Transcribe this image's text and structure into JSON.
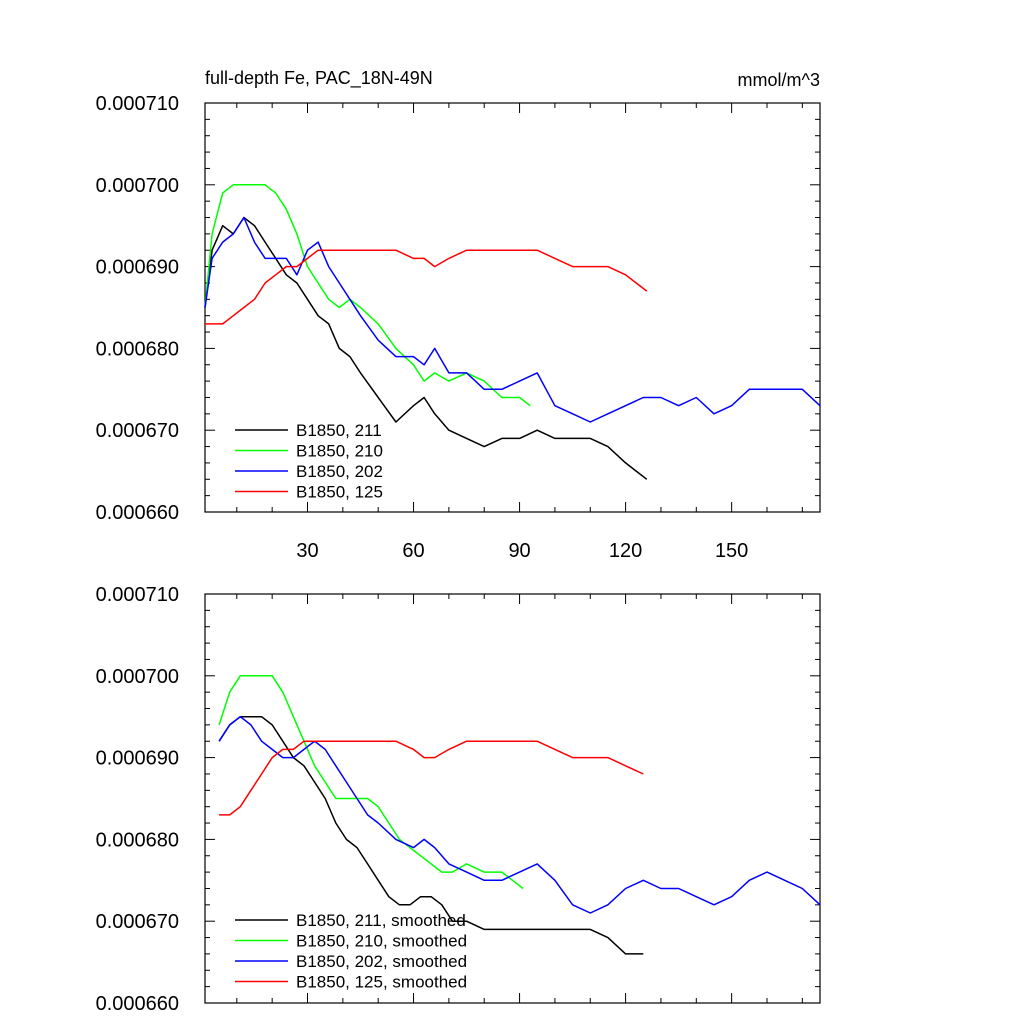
{
  "chart_data": [
    {
      "type": "line",
      "title": "full-depth Fe, PAC_18N-49N",
      "units": "mmol/m^3",
      "xlabel": "",
      "ylabel": "",
      "xlim": [
        1,
        175
      ],
      "ylim": [
        0.00066,
        0.00071
      ],
      "yticks": [
        "0.000660",
        "0.000670",
        "0.000680",
        "0.000690",
        "0.000700",
        "0.000710"
      ],
      "xticks": [
        30,
        60,
        90,
        120,
        150
      ],
      "xtick_labels": [
        "30",
        "60",
        "90",
        "120",
        "150"
      ],
      "legend_position": "bottom-left",
      "grid": false,
      "series": [
        {
          "name": "B1850, 211",
          "color": "#000000",
          "x": [
            1,
            3,
            6,
            9,
            12,
            15,
            18,
            21,
            24,
            27,
            30,
            33,
            36,
            39,
            42,
            45,
            50,
            55,
            60,
            63,
            66,
            70,
            75,
            80,
            85,
            90,
            95,
            100,
            105,
            110,
            115,
            120,
            123,
            126
          ],
          "y": [
            0.000685,
            0.000692,
            0.000695,
            0.000694,
            0.000696,
            0.000695,
            0.000693,
            0.000691,
            0.000689,
            0.000688,
            0.000686,
            0.000684,
            0.000683,
            0.00068,
            0.000679,
            0.000677,
            0.000674,
            0.000671,
            0.000673,
            0.000674,
            0.000672,
            0.00067,
            0.000669,
            0.000668,
            0.000669,
            0.000669,
            0.00067,
            0.000669,
            0.000669,
            0.000669,
            0.000668,
            0.000666,
            0.000665,
            0.000664
          ]
        },
        {
          "name": "B1850, 210",
          "color": "#00ff00",
          "x": [
            1,
            3,
            6,
            9,
            12,
            15,
            18,
            21,
            24,
            27,
            30,
            33,
            36,
            39,
            42,
            45,
            50,
            55,
            60,
            63,
            66,
            70,
            75,
            80,
            85,
            90,
            93
          ],
          "y": [
            0.000685,
            0.000694,
            0.000699,
            0.0007,
            0.0007,
            0.0007,
            0.0007,
            0.000699,
            0.000697,
            0.000694,
            0.00069,
            0.000688,
            0.000686,
            0.000685,
            0.000686,
            0.000685,
            0.000683,
            0.00068,
            0.000678,
            0.000676,
            0.000677,
            0.000676,
            0.000677,
            0.000676,
            0.000674,
            0.000674,
            0.000673
          ]
        },
        {
          "name": "B1850, 202",
          "color": "#0000ff",
          "x": [
            1,
            3,
            6,
            9,
            12,
            15,
            18,
            21,
            24,
            27,
            30,
            33,
            36,
            39,
            42,
            45,
            50,
            55,
            60,
            63,
            66,
            70,
            75,
            80,
            85,
            90,
            95,
            100,
            105,
            110,
            115,
            120,
            125,
            130,
            135,
            140,
            145,
            150,
            155,
            160,
            165,
            170,
            175
          ],
          "y": [
            0.000685,
            0.000691,
            0.000693,
            0.000694,
            0.000696,
            0.000693,
            0.000691,
            0.000691,
            0.000691,
            0.000689,
            0.000692,
            0.000693,
            0.00069,
            0.000688,
            0.000686,
            0.000684,
            0.000681,
            0.000679,
            0.000679,
            0.000678,
            0.00068,
            0.000677,
            0.000677,
            0.000675,
            0.000675,
            0.000676,
            0.000677,
            0.000673,
            0.000672,
            0.000671,
            0.000672,
            0.000673,
            0.000674,
            0.000674,
            0.000673,
            0.000674,
            0.000672,
            0.000673,
            0.000675,
            0.000675,
            0.000675,
            0.000675,
            0.000673
          ]
        },
        {
          "name": "B1850, 125",
          "color": "#ff0000",
          "x": [
            1,
            3,
            6,
            9,
            12,
            15,
            18,
            21,
            24,
            27,
            30,
            33,
            36,
            39,
            42,
            45,
            50,
            55,
            60,
            63,
            66,
            70,
            75,
            80,
            85,
            90,
            95,
            100,
            105,
            110,
            115,
            120,
            123,
            126
          ],
          "y": [
            0.000683,
            0.000683,
            0.000683,
            0.000684,
            0.000685,
            0.000686,
            0.000688,
            0.000689,
            0.00069,
            0.00069,
            0.000691,
            0.000692,
            0.000692,
            0.000692,
            0.000692,
            0.000692,
            0.000692,
            0.000692,
            0.000691,
            0.000691,
            0.00069,
            0.000691,
            0.000692,
            0.000692,
            0.000692,
            0.000692,
            0.000692,
            0.000691,
            0.00069,
            0.00069,
            0.00069,
            0.000689,
            0.000688,
            0.000687
          ]
        }
      ]
    },
    {
      "type": "line",
      "title": "",
      "xlabel": "",
      "ylabel": "",
      "xlim": [
        1,
        175
      ],
      "ylim": [
        0.00066,
        0.00071
      ],
      "yticks": [
        "0.000660",
        "0.000670",
        "0.000680",
        "0.000690",
        "0.000700",
        "0.000710"
      ],
      "xticks": [
        30,
        60,
        90,
        120,
        150
      ],
      "xtick_labels": [],
      "legend_position": "bottom-left",
      "grid": false,
      "series": [
        {
          "name": "B1850, 211, smoothed",
          "color": "#000000",
          "x": [
            5,
            8,
            11,
            14,
            17,
            20,
            23,
            26,
            29,
            32,
            35,
            38,
            41,
            44,
            47,
            50,
            53,
            56,
            59,
            62,
            65,
            68,
            71,
            75,
            80,
            85,
            90,
            95,
            100,
            105,
            110,
            115,
            120,
            125
          ],
          "y": [
            0.000692,
            0.000694,
            0.000695,
            0.000695,
            0.000695,
            0.000694,
            0.000692,
            0.00069,
            0.000689,
            0.000687,
            0.000685,
            0.000682,
            0.00068,
            0.000679,
            0.000677,
            0.000675,
            0.000673,
            0.000672,
            0.000672,
            0.000673,
            0.000673,
            0.000672,
            0.00067,
            0.00067,
            0.000669,
            0.000669,
            0.000669,
            0.000669,
            0.000669,
            0.000669,
            0.000669,
            0.000668,
            0.000666,
            0.000666
          ]
        },
        {
          "name": "B1850, 210, smoothed",
          "color": "#00ff00",
          "x": [
            5,
            8,
            11,
            14,
            17,
            20,
            23,
            26,
            29,
            32,
            35,
            38,
            41,
            44,
            47,
            50,
            53,
            56,
            59,
            62,
            65,
            68,
            71,
            75,
            80,
            85,
            88,
            91
          ],
          "y": [
            0.000694,
            0.000698,
            0.0007,
            0.0007,
            0.0007,
            0.0007,
            0.000698,
            0.000695,
            0.000692,
            0.000689,
            0.000687,
            0.000685,
            0.000685,
            0.000685,
            0.000685,
            0.000684,
            0.000682,
            0.00068,
            0.000679,
            0.000678,
            0.000677,
            0.000676,
            0.000676,
            0.000677,
            0.000676,
            0.000676,
            0.000675,
            0.000674
          ]
        },
        {
          "name": "B1850, 202, smoothed",
          "color": "#0000ff",
          "x": [
            5,
            8,
            11,
            14,
            17,
            20,
            23,
            26,
            29,
            32,
            35,
            38,
            41,
            44,
            47,
            50,
            55,
            60,
            63,
            66,
            70,
            75,
            80,
            85,
            90,
            95,
            100,
            105,
            110,
            115,
            120,
            125,
            130,
            135,
            140,
            145,
            150,
            155,
            160,
            165,
            170,
            175
          ],
          "y": [
            0.000692,
            0.000694,
            0.000695,
            0.000694,
            0.000692,
            0.000691,
            0.00069,
            0.00069,
            0.000691,
            0.000692,
            0.000691,
            0.000689,
            0.000687,
            0.000685,
            0.000683,
            0.000682,
            0.00068,
            0.000679,
            0.00068,
            0.000679,
            0.000677,
            0.000676,
            0.000675,
            0.000675,
            0.000676,
            0.000677,
            0.000675,
            0.000672,
            0.000671,
            0.000672,
            0.000674,
            0.000675,
            0.000674,
            0.000674,
            0.000673,
            0.000672,
            0.000673,
            0.000675,
            0.000676,
            0.000675,
            0.000674,
            0.000672
          ]
        },
        {
          "name": "B1850, 125, smoothed",
          "color": "#ff0000",
          "x": [
            5,
            8,
            11,
            14,
            17,
            20,
            23,
            26,
            29,
            32,
            35,
            38,
            41,
            44,
            47,
            50,
            55,
            60,
            63,
            66,
            70,
            75,
            80,
            85,
            90,
            95,
            100,
            105,
            110,
            115,
            120,
            125
          ],
          "y": [
            0.000683,
            0.000683,
            0.000684,
            0.000686,
            0.000688,
            0.00069,
            0.000691,
            0.000691,
            0.000692,
            0.000692,
            0.000692,
            0.000692,
            0.000692,
            0.000692,
            0.000692,
            0.000692,
            0.000692,
            0.000691,
            0.00069,
            0.00069,
            0.000691,
            0.000692,
            0.000692,
            0.000692,
            0.000692,
            0.000692,
            0.000691,
            0.00069,
            0.00069,
            0.00069,
            0.000689,
            0.000688
          ]
        }
      ]
    }
  ]
}
